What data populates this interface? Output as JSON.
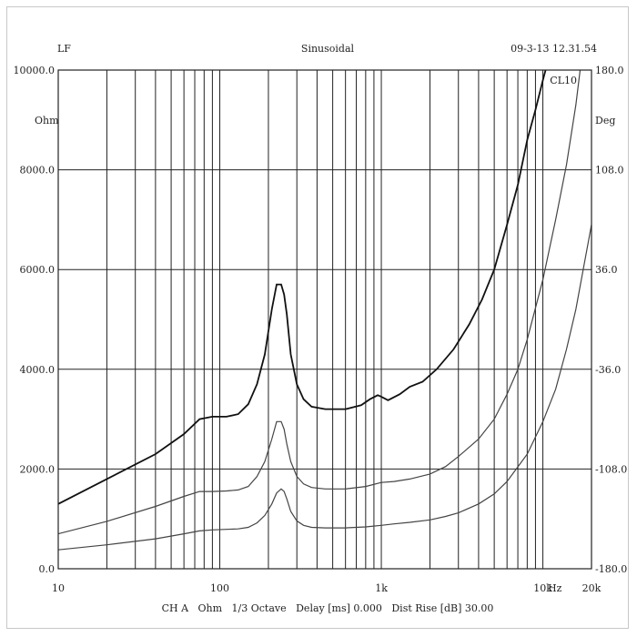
{
  "header": {
    "left": "LF",
    "center": "Sinusoidal",
    "right": "09-3-13 12.31.54",
    "curve_label": "CL10"
  },
  "footer": "CH A   Ohm   1/3 Octave   Delay [ms] 0.000   Dist Rise [dB] 30.00",
  "chart_data": {
    "type": "line",
    "x_scale": "log",
    "xlim": [
      10,
      20000
    ],
    "ylim": [
      0,
      10000
    ],
    "ylim_right": [
      -180,
      180
    ],
    "ylabel": "Ohm",
    "ylabel_right": "Deg",
    "x_unit_label": "Hz",
    "grid": true,
    "x_ticks": [
      {
        "value": 10,
        "label": "10"
      },
      {
        "value": 100,
        "label": "100"
      },
      {
        "value": 1000,
        "label": "1k"
      },
      {
        "value": 10000,
        "label": "10k"
      },
      {
        "value": 20000,
        "label": "20k"
      }
    ],
    "y_ticks": [
      {
        "value": 0,
        "label": "0.0"
      },
      {
        "value": 2000,
        "label": "2000.0"
      },
      {
        "value": 4000,
        "label": "4000.0"
      },
      {
        "value": 6000,
        "label": "6000.0"
      },
      {
        "value": 8000,
        "label": "8000.0"
      },
      {
        "value": 10000,
        "label": "10000.0"
      }
    ],
    "y_ticks_right": [
      {
        "value": -180,
        "label": "-180.0"
      },
      {
        "value": -108,
        "label": "-108.0"
      },
      {
        "value": -36,
        "label": "-36.0"
      },
      {
        "value": 36,
        "label": "36.0"
      },
      {
        "value": 108,
        "label": "108.0"
      },
      {
        "value": 180,
        "label": "180.0"
      }
    ],
    "series": [
      {
        "x": [
          10,
          20,
          40,
          60,
          75,
          90,
          110,
          130,
          150,
          170,
          190,
          210,
          225,
          240,
          250,
          260,
          275,
          300,
          330,
          370,
          450,
          600,
          750,
          850,
          950,
          1000,
          1100,
          1300,
          1500,
          1800,
          2200,
          2800,
          3500,
          4200,
          5000,
          6000,
          7000,
          8000,
          9000,
          10000,
          11000,
          12000
        ],
        "values": [
          1300,
          1800,
          2300,
          2700,
          3000,
          3050,
          3050,
          3100,
          3300,
          3700,
          4300,
          5200,
          5700,
          5700,
          5500,
          5100,
          4300,
          3700,
          3400,
          3250,
          3200,
          3200,
          3280,
          3400,
          3480,
          3450,
          3380,
          3500,
          3650,
          3750,
          4000,
          4400,
          4900,
          5400,
          6000,
          6900,
          7700,
          8600,
          9200,
          9800,
          10300,
          10800
        ]
      },
      {
        "x": [
          10,
          20,
          40,
          60,
          75,
          90,
          110,
          130,
          150,
          170,
          190,
          210,
          225,
          240,
          250,
          260,
          275,
          300,
          330,
          370,
          450,
          600,
          800,
          1000,
          1200,
          1500,
          2000,
          2500,
          3000,
          4000,
          5000,
          6000,
          7000,
          8000,
          10000,
          12000,
          14000,
          16000,
          17000
        ],
        "values": [
          700,
          950,
          1250,
          1450,
          1550,
          1550,
          1560,
          1580,
          1650,
          1850,
          2150,
          2600,
          2950,
          2950,
          2800,
          2500,
          2150,
          1850,
          1700,
          1630,
          1600,
          1600,
          1650,
          1730,
          1750,
          1800,
          1900,
          2050,
          2250,
          2600,
          3000,
          3500,
          4000,
          4600,
          5800,
          7000,
          8100,
          9300,
          10000
        ]
      },
      {
        "x": [
          10,
          20,
          40,
          60,
          75,
          90,
          110,
          130,
          150,
          170,
          190,
          210,
          225,
          240,
          250,
          260,
          275,
          300,
          330,
          370,
          450,
          600,
          800,
          1000,
          1200,
          1500,
          2000,
          2500,
          3000,
          4000,
          5000,
          6000,
          8000,
          10000,
          12000,
          14000,
          16000,
          18000,
          20000
        ],
        "values": [
          380,
          480,
          600,
          700,
          760,
          780,
          790,
          800,
          830,
          920,
          1070,
          1300,
          1520,
          1600,
          1550,
          1400,
          1150,
          960,
          870,
          830,
          820,
          820,
          840,
          870,
          900,
          930,
          980,
          1050,
          1120,
          1300,
          1500,
          1750,
          2300,
          2950,
          3600,
          4400,
          5200,
          6100,
          6900
        ]
      }
    ]
  }
}
